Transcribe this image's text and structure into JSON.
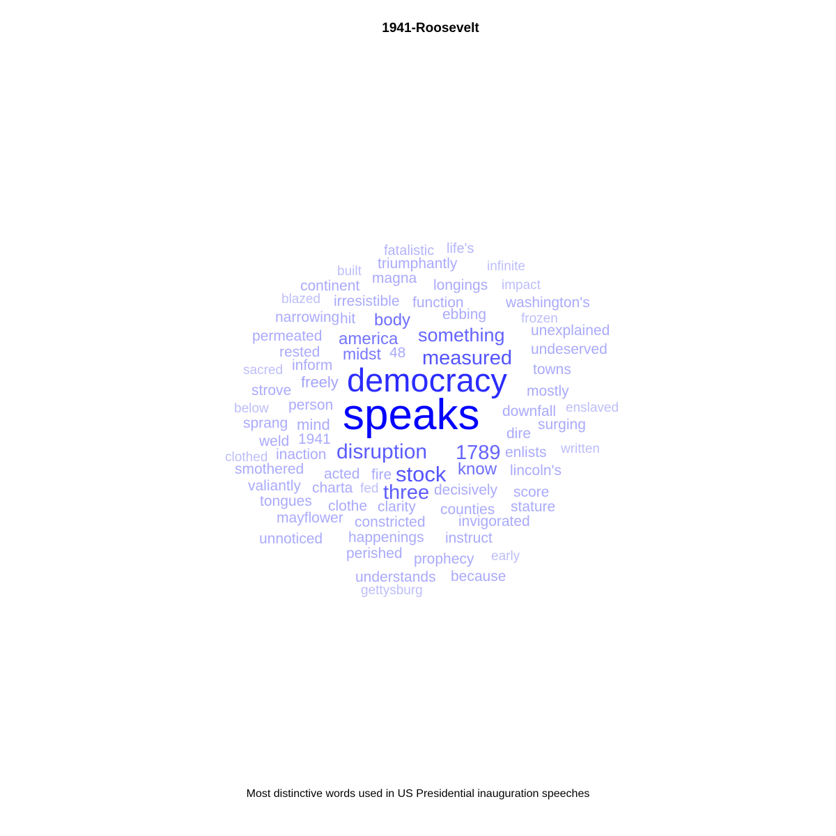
{
  "title": "1941-Roosevelt",
  "caption": "Most distinctive words used in US Presidential inauguration speeches",
  "chart_data": {
    "type": "wordcloud",
    "title": "1941-Roosevelt",
    "caption": "Most distinctive words used in US Presidential inauguration speeches",
    "color_scale": {
      "low": "#C8C8FA",
      "high": "#0000FF"
    },
    "words": [
      {
        "word": "speaks",
        "weight": 1.0
      },
      {
        "word": "democracy",
        "weight": 0.78
      },
      {
        "word": "measured",
        "weight": 0.58
      },
      {
        "word": "stock",
        "weight": 0.58
      },
      {
        "word": "disruption",
        "weight": 0.54
      },
      {
        "word": "three",
        "weight": 0.54
      },
      {
        "word": "1789",
        "weight": 0.5
      },
      {
        "word": "something",
        "weight": 0.5
      },
      {
        "word": "know",
        "weight": 0.45
      },
      {
        "word": "body",
        "weight": 0.45
      },
      {
        "word": "america",
        "weight": 0.42
      },
      {
        "word": "midst",
        "weight": 0.4
      },
      {
        "word": "fatalistic",
        "weight": 0.1
      },
      {
        "word": "life's",
        "weight": 0.1
      },
      {
        "word": "triumphantly",
        "weight": 0.15
      },
      {
        "word": "built",
        "weight": 0.05
      },
      {
        "word": "infinite",
        "weight": 0.05
      },
      {
        "word": "magna",
        "weight": 0.15
      },
      {
        "word": "continent",
        "weight": 0.15
      },
      {
        "word": "longings",
        "weight": 0.15
      },
      {
        "word": "impact",
        "weight": 0.05
      },
      {
        "word": "blazed",
        "weight": 0.05
      },
      {
        "word": "irresistible",
        "weight": 0.15
      },
      {
        "word": "function",
        "weight": 0.15
      },
      {
        "word": "washington's",
        "weight": 0.15
      },
      {
        "word": "ebbing",
        "weight": 0.15
      },
      {
        "word": "narrowing",
        "weight": 0.15
      },
      {
        "word": "hit",
        "weight": 0.15
      },
      {
        "word": "frozen",
        "weight": 0.05
      },
      {
        "word": "unexplained",
        "weight": 0.15
      },
      {
        "word": "permeated",
        "weight": 0.15
      },
      {
        "word": "undeserved",
        "weight": 0.15
      },
      {
        "word": "rested",
        "weight": 0.15
      },
      {
        "word": "48",
        "weight": 0.15
      },
      {
        "word": "sacred",
        "weight": 0.05
      },
      {
        "word": "inform",
        "weight": 0.15
      },
      {
        "word": "towns",
        "weight": 0.15
      },
      {
        "word": "freely",
        "weight": 0.18
      },
      {
        "word": "strove",
        "weight": 0.15
      },
      {
        "word": "mostly",
        "weight": 0.15
      },
      {
        "word": "person",
        "weight": 0.15
      },
      {
        "word": "below",
        "weight": 0.05
      },
      {
        "word": "downfall",
        "weight": 0.15
      },
      {
        "word": "enslaved",
        "weight": 0.05
      },
      {
        "word": "sprang",
        "weight": 0.15
      },
      {
        "word": "mind",
        "weight": 0.15
      },
      {
        "word": "surging",
        "weight": 0.15
      },
      {
        "word": "dire",
        "weight": 0.15
      },
      {
        "word": "weld",
        "weight": 0.15
      },
      {
        "word": "1941",
        "weight": 0.15
      },
      {
        "word": "enlists",
        "weight": 0.15
      },
      {
        "word": "written",
        "weight": 0.05
      },
      {
        "word": "clothed",
        "weight": 0.05
      },
      {
        "word": "inaction",
        "weight": 0.15
      },
      {
        "word": "smothered",
        "weight": 0.15
      },
      {
        "word": "lincoln's",
        "weight": 0.15
      },
      {
        "word": "acted",
        "weight": 0.15
      },
      {
        "word": "fire",
        "weight": 0.15
      },
      {
        "word": "valiantly",
        "weight": 0.15
      },
      {
        "word": "charta",
        "weight": 0.15
      },
      {
        "word": "fed",
        "weight": 0.05
      },
      {
        "word": "decisively",
        "weight": 0.15
      },
      {
        "word": "score",
        "weight": 0.15
      },
      {
        "word": "tongues",
        "weight": 0.15
      },
      {
        "word": "clothe",
        "weight": 0.15
      },
      {
        "word": "clarity",
        "weight": 0.15
      },
      {
        "word": "counties",
        "weight": 0.15
      },
      {
        "word": "stature",
        "weight": 0.15
      },
      {
        "word": "mayflower",
        "weight": 0.15
      },
      {
        "word": "constricted",
        "weight": 0.15
      },
      {
        "word": "invigorated",
        "weight": 0.15
      },
      {
        "word": "unnoticed",
        "weight": 0.15
      },
      {
        "word": "happenings",
        "weight": 0.15
      },
      {
        "word": "instruct",
        "weight": 0.15
      },
      {
        "word": "perished",
        "weight": 0.15
      },
      {
        "word": "prophecy",
        "weight": 0.15
      },
      {
        "word": "early",
        "weight": 0.05
      },
      {
        "word": "understands",
        "weight": 0.15
      },
      {
        "word": "because",
        "weight": 0.15
      },
      {
        "word": "gettysburg",
        "weight": 0.05
      }
    ]
  }
}
